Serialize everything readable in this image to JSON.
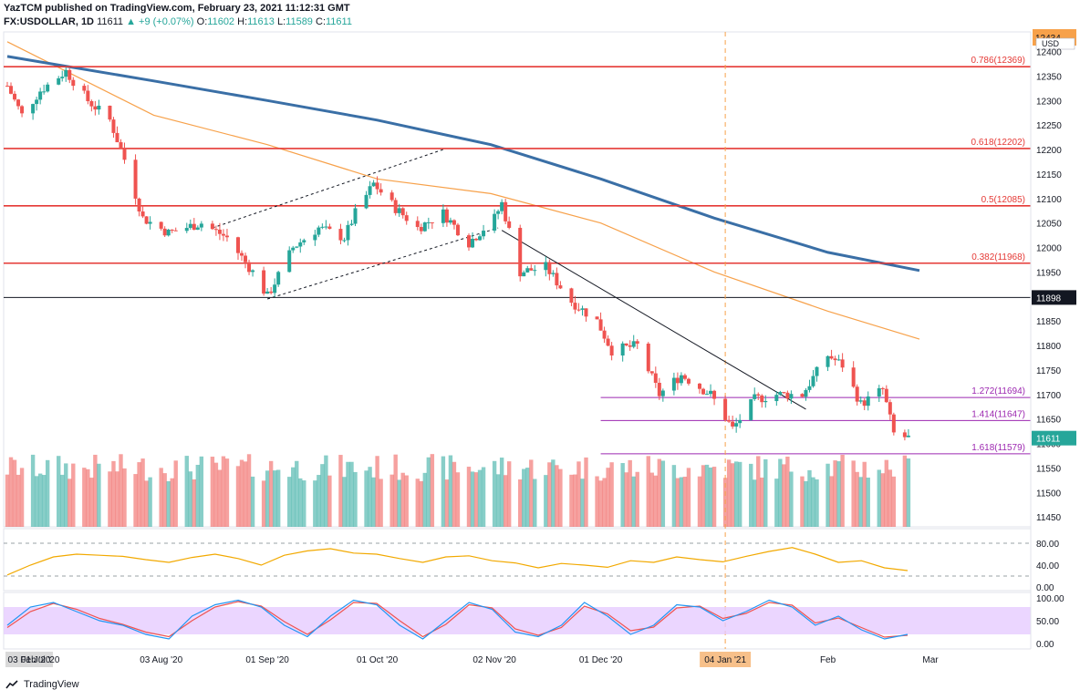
{
  "header": {
    "publisher_line": "YazTCM published on TradingView.com, February 23, 2021 11:12:31 GMT",
    "symbol_label": "FX:USDOLLAR, 1D",
    "last": "11611",
    "change": "+9 (+0.07%)",
    "o_label": "O:",
    "o": "11602",
    "h_label": "H:",
    "h": "11613",
    "l_label": "L:",
    "l": "11589",
    "c_label": "C:",
    "c": "11611"
  },
  "footer": {
    "brand": "TradingView"
  },
  "colors": {
    "up": "#26a69a",
    "down": "#ef5350",
    "fib_red": "#e53935",
    "fib_purple": "#9c27b0",
    "sma_blue": "#3a6fa6",
    "sma_orange": "#f7a14a",
    "rsi": "#f2a900",
    "stoch_k": "#2196f3",
    "stoch_d": "#ef5350",
    "stoch_band": "#e6ccff",
    "current_price_bg": "#26a69a"
  },
  "price_axis": {
    "currency": "USD",
    "top_clipped_label": "12434",
    "ticks": [
      "12400",
      "12350",
      "12300",
      "12250",
      "12200",
      "12150",
      "12100",
      "12050",
      "12000",
      "11950",
      "11850",
      "11800",
      "11750",
      "11700",
      "11650",
      "11550",
      "11500",
      "11450"
    ],
    "current_price": "11611",
    "hline_price": "11898",
    "partial_tick": "11600"
  },
  "fib_levels": [
    {
      "label": "0.786(12369)",
      "price": 12369,
      "color": "red"
    },
    {
      "label": "0.618(12202)",
      "price": 12202,
      "color": "red"
    },
    {
      "label": "0.5(12085)",
      "price": 12085,
      "color": "red"
    },
    {
      "label": "0.382(11968)",
      "price": 11968,
      "color": "red"
    },
    {
      "label": "1.272(11694)",
      "price": 11694,
      "color": "purple"
    },
    {
      "label": "1.414(11647)",
      "price": 11647,
      "color": "purple"
    },
    {
      "label": "1.618(11579)",
      "price": 11579,
      "color": "purple"
    }
  ],
  "time_axis": {
    "labels": [
      "03 Feb '20",
      "01 Jul '20",
      "03 Aug '20",
      "01 Sep '20",
      "01 Oct '20",
      "02 Nov '20",
      "01 Dec '20",
      "04 Jan '21",
      "Feb",
      "Mar"
    ],
    "highlight": "04 Jan '21"
  },
  "rsi_axis": {
    "ticks": [
      "80.00",
      "40.00",
      "0.00"
    ]
  },
  "stoch_axis": {
    "ticks": [
      "100.00",
      "50.00",
      "0.00"
    ]
  },
  "chart_data": {
    "type": "candlestick",
    "symbol": "FX:USDOLLAR",
    "interval": "1D",
    "ylim": [
      11430,
      12440
    ],
    "x_range": [
      "2020-06-22",
      "2021-03-01"
    ],
    "waypoints": [
      [
        "2020-06-22",
        12330
      ],
      [
        "2020-06-26",
        12270
      ],
      [
        "2020-07-01",
        12320
      ],
      [
        "2020-07-08",
        12360
      ],
      [
        "2020-07-14",
        12300
      ],
      [
        "2020-07-20",
        12260
      ],
      [
        "2020-07-24",
        12180
      ],
      [
        "2020-07-29",
        12060
      ],
      [
        "2020-08-05",
        12030
      ],
      [
        "2020-08-14",
        12050
      ],
      [
        "2020-08-21",
        12020
      ],
      [
        "2020-08-28",
        11950
      ],
      [
        "2020-09-01",
        11900
      ],
      [
        "2020-09-08",
        12000
      ],
      [
        "2020-09-15",
        12040
      ],
      [
        "2020-09-22",
        12020
      ],
      [
        "2020-09-25",
        12070
      ],
      [
        "2020-09-30",
        12130
      ],
      [
        "2020-10-06",
        12080
      ],
      [
        "2020-10-12",
        12040
      ],
      [
        "2020-10-19",
        12070
      ],
      [
        "2020-10-26",
        12010
      ],
      [
        "2020-11-02",
        12060
      ],
      [
        "2020-11-04",
        12090
      ],
      [
        "2020-11-09",
        11950
      ],
      [
        "2020-11-16",
        11960
      ],
      [
        "2020-11-23",
        11890
      ],
      [
        "2020-11-30",
        11850
      ],
      [
        "2020-12-04",
        11790
      ],
      [
        "2020-12-11",
        11800
      ],
      [
        "2020-12-17",
        11700
      ],
      [
        "2020-12-23",
        11740
      ],
      [
        "2020-12-31",
        11700
      ],
      [
        "2021-01-06",
        11630
      ],
      [
        "2021-01-12",
        11690
      ],
      [
        "2021-01-18",
        11700
      ],
      [
        "2021-01-25",
        11700
      ],
      [
        "2021-02-01",
        11780
      ],
      [
        "2021-02-05",
        11760
      ],
      [
        "2021-02-10",
        11680
      ],
      [
        "2021-02-16",
        11710
      ],
      [
        "2021-02-19",
        11620
      ],
      [
        "2021-02-23",
        11611
      ]
    ],
    "sma_orange": [
      [
        "2020-06-22",
        12420
      ],
      [
        "2020-08-01",
        12270
      ],
      [
        "2020-09-01",
        12210
      ],
      [
        "2020-10-01",
        12140
      ],
      [
        "2020-11-01",
        12110
      ],
      [
        "2020-12-01",
        12050
      ],
      [
        "2021-01-01",
        11950
      ],
      [
        "2021-02-01",
        11870
      ],
      [
        "2021-02-26",
        11813
      ]
    ],
    "sma_blue": [
      [
        "2020-06-22",
        12390
      ],
      [
        "2020-08-01",
        12340
      ],
      [
        "2020-09-01",
        12300
      ],
      [
        "2020-10-01",
        12260
      ],
      [
        "2020-11-01",
        12210
      ],
      [
        "2020-12-01",
        12140
      ],
      [
        "2021-01-01",
        12060
      ],
      [
        "2021-02-01",
        11990
      ],
      [
        "2021-02-26",
        11953
      ]
    ],
    "trendlines": [
      {
        "name": "channel-lower",
        "from": [
          "2020-09-01",
          11895
        ],
        "to": [
          "2020-11-03",
          12040
        ]
      },
      {
        "name": "channel-upper",
        "from": [
          "2020-08-17",
          12040
        ],
        "to": [
          "2020-10-19",
          12200
        ]
      },
      {
        "name": "descending",
        "from": [
          "2020-11-04",
          12035
        ],
        "to": [
          "2021-01-26",
          11670
        ]
      }
    ],
    "rsi": {
      "ylim": [
        0,
        100
      ],
      "values_weekly": [
        22,
        40,
        55,
        60,
        58,
        56,
        50,
        45,
        54,
        60,
        52,
        40,
        58,
        66,
        70,
        62,
        60,
        52,
        45,
        55,
        57,
        48,
        44,
        35,
        43,
        40,
        36,
        48,
        45,
        55,
        50,
        46,
        56,
        65,
        72,
        60,
        45,
        48,
        35,
        30
      ]
    },
    "stoch": {
      "ylim": [
        0,
        100
      ],
      "k_weekly": [
        40,
        80,
        90,
        70,
        50,
        40,
        20,
        10,
        60,
        85,
        95,
        80,
        40,
        15,
        60,
        95,
        85,
        40,
        10,
        50,
        90,
        75,
        25,
        15,
        40,
        90,
        60,
        20,
        40,
        85,
        80,
        50,
        70,
        95,
        80,
        40,
        60,
        30,
        10,
        20
      ],
      "d_weekly": [
        35,
        70,
        88,
        75,
        55,
        42,
        25,
        15,
        50,
        80,
        92,
        82,
        48,
        20,
        52,
        90,
        88,
        50,
        15,
        42,
        85,
        78,
        32,
        18,
        35,
        82,
        65,
        28,
        36,
        78,
        82,
        55,
        66,
        90,
        84,
        45,
        56,
        35,
        14,
        18
      ]
    }
  }
}
